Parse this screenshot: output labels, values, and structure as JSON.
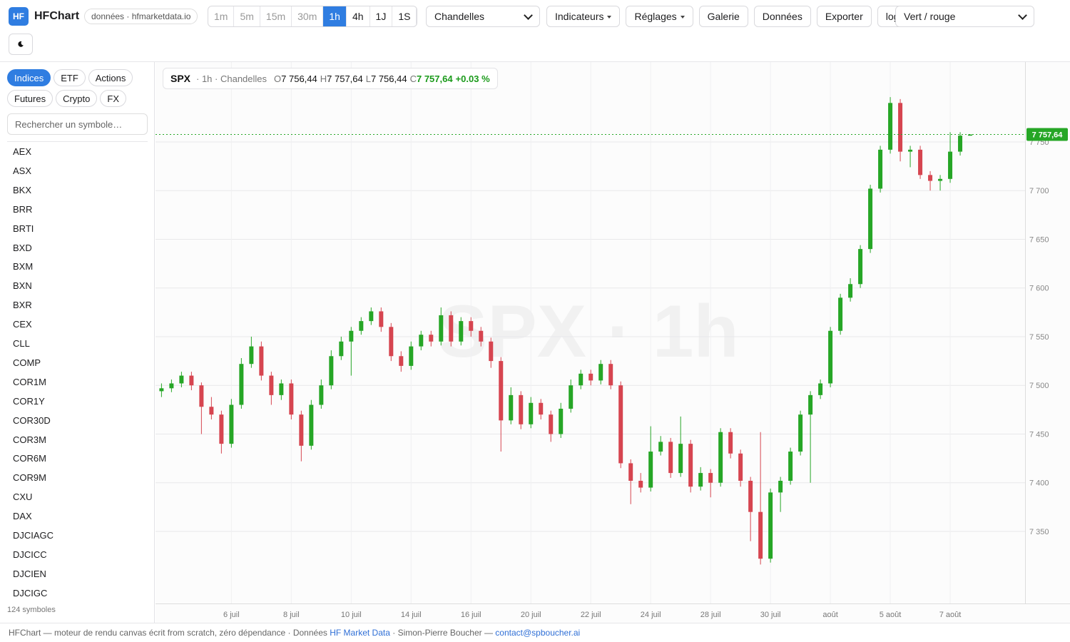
{
  "header": {
    "logo": "HF",
    "brand": "HFChart",
    "source": "données · hfmarketdata.io",
    "timeframes": [
      "1m",
      "5m",
      "15m",
      "30m",
      "1h",
      "4h",
      "1J",
      "1S"
    ],
    "active_timeframe": "1h",
    "chart_type": "Chandelles",
    "buttons": [
      "Indicateurs",
      "Réglages",
      "Galerie",
      "Données",
      "Exporter",
      "log"
    ],
    "dropdown_buttons": [
      "Indicateurs",
      "Réglages"
    ],
    "palette": "Vert / rouge"
  },
  "sidebar": {
    "tabs": [
      "Indices",
      "ETF",
      "Actions",
      "Futures",
      "Crypto",
      "FX"
    ],
    "active_tab": "Indices",
    "search_placeholder": "Rechercher un symbole…",
    "symbols": [
      "AEX",
      "ASX",
      "BKX",
      "BRR",
      "BRTI",
      "BXD",
      "BXM",
      "BXN",
      "BXR",
      "CEX",
      "CLL",
      "COMP",
      "COR1M",
      "COR1Y",
      "COR30D",
      "COR3M",
      "COR6M",
      "COR9M",
      "CXU",
      "DAX",
      "DJCIAGC",
      "DJCICC",
      "DJCIEN",
      "DJCIGC"
    ],
    "count": "124 symboles"
  },
  "chart_data": {
    "type": "candlestick",
    "symbol": "SPX",
    "subtitle": "· 1h · Chandelles",
    "watermark": "SPX · 1h",
    "legend": {
      "o_key": "O",
      "o": "7 756,44",
      "h_key": "H",
      "h": "7 757,64",
      "l_key": "L",
      "l": "7 756,44",
      "c_key": "C",
      "c": "7 757,64",
      "change": "+0.03 %"
    },
    "up_color": "#26a626",
    "down_color": "#d64550",
    "grid": true,
    "last_price": 7757.64,
    "last_price_label": "7 757,64",
    "xlim": [
      -0.6,
      86.5
    ],
    "ylim": [
      7276,
      7832
    ],
    "xticks": [
      {
        "value": 7,
        "label": "6 juil"
      },
      {
        "value": 13,
        "label": "8 juil"
      },
      {
        "value": 19,
        "label": "10 juil"
      },
      {
        "value": 25,
        "label": "14 juil"
      },
      {
        "value": 31,
        "label": "16 juil"
      },
      {
        "value": 37,
        "label": "20 juil"
      },
      {
        "value": 43,
        "label": "22 juil"
      },
      {
        "value": 49,
        "label": "24 juil"
      },
      {
        "value": 55,
        "label": "28 juil"
      },
      {
        "value": 61,
        "label": "30 juil"
      },
      {
        "value": 67,
        "label": "août"
      },
      {
        "value": 73,
        "label": "5 août"
      },
      {
        "value": 79,
        "label": "7 août"
      }
    ],
    "yticks": [
      {
        "value": 7350,
        "label": "7 350"
      },
      {
        "value": 7400,
        "label": "7 400"
      },
      {
        "value": 7450,
        "label": "7 450"
      },
      {
        "value": 7500,
        "label": "7 500"
      },
      {
        "value": 7550,
        "label": "7 550"
      },
      {
        "value": 7600,
        "label": "7 600"
      },
      {
        "value": 7650,
        "label": "7 650"
      },
      {
        "value": 7700,
        "label": "7 700"
      },
      {
        "value": 7750,
        "label": "7 750"
      }
    ],
    "candles": [
      [
        7494,
        7502,
        7488,
        7497
      ],
      [
        7497,
        7506,
        7493,
        7502
      ],
      [
        7502,
        7514,
        7498,
        7510
      ],
      [
        7510,
        7514,
        7495,
        7500
      ],
      [
        7500,
        7503,
        7450,
        7478
      ],
      [
        7478,
        7488,
        7465,
        7470
      ],
      [
        7470,
        7474,
        7430,
        7440
      ],
      [
        7440,
        7486,
        7436,
        7480
      ],
      [
        7480,
        7528,
        7476,
        7522
      ],
      [
        7522,
        7550,
        7518,
        7540
      ],
      [
        7540,
        7545,
        7505,
        7510
      ],
      [
        7510,
        7514,
        7480,
        7490
      ],
      [
        7490,
        7506,
        7485,
        7502
      ],
      [
        7502,
        7506,
        7465,
        7470
      ],
      [
        7470,
        7474,
        7422,
        7438
      ],
      [
        7438,
        7485,
        7434,
        7480
      ],
      [
        7480,
        7506,
        7476,
        7500
      ],
      [
        7500,
        7536,
        7496,
        7530
      ],
      [
        7530,
        7550,
        7526,
        7545
      ],
      [
        7545,
        7560,
        7510,
        7556
      ],
      [
        7556,
        7570,
        7552,
        7566
      ],
      [
        7566,
        7580,
        7562,
        7576
      ],
      [
        7576,
        7580,
        7555,
        7560
      ],
      [
        7560,
        7564,
        7525,
        7530
      ],
      [
        7530,
        7535,
        7514,
        7520
      ],
      [
        7520,
        7545,
        7516,
        7540
      ],
      [
        7540,
        7556,
        7536,
        7552
      ],
      [
        7552,
        7556,
        7540,
        7545
      ],
      [
        7545,
        7580,
        7541,
        7572
      ],
      [
        7572,
        7576,
        7540,
        7545
      ],
      [
        7545,
        7570,
        7541,
        7566
      ],
      [
        7566,
        7570,
        7550,
        7556
      ],
      [
        7556,
        7560,
        7540,
        7545
      ],
      [
        7545,
        7549,
        7518,
        7525
      ],
      [
        7525,
        7529,
        7432,
        7464
      ],
      [
        7464,
        7498,
        7460,
        7490
      ],
      [
        7490,
        7494,
        7455,
        7460
      ],
      [
        7460,
        7488,
        7456,
        7482
      ],
      [
        7482,
        7486,
        7465,
        7470
      ],
      [
        7470,
        7474,
        7442,
        7450
      ],
      [
        7450,
        7482,
        7446,
        7476
      ],
      [
        7476,
        7506,
        7472,
        7500
      ],
      [
        7500,
        7516,
        7496,
        7512
      ],
      [
        7512,
        7516,
        7500,
        7505
      ],
      [
        7505,
        7526,
        7501,
        7522
      ],
      [
        7522,
        7526,
        7496,
        7500
      ],
      [
        7500,
        7504,
        7415,
        7420
      ],
      [
        7420,
        7424,
        7378,
        7402
      ],
      [
        7402,
        7410,
        7390,
        7395
      ],
      [
        7395,
        7458,
        7391,
        7432
      ],
      [
        7432,
        7448,
        7428,
        7442
      ],
      [
        7442,
        7446,
        7405,
        7410
      ],
      [
        7410,
        7468,
        7406,
        7440
      ],
      [
        7440,
        7444,
        7390,
        7396
      ],
      [
        7396,
        7416,
        7392,
        7410
      ],
      [
        7410,
        7414,
        7385,
        7400
      ],
      [
        7400,
        7456,
        7396,
        7452
      ],
      [
        7452,
        7456,
        7425,
        7430
      ],
      [
        7430,
        7434,
        7396,
        7402
      ],
      [
        7402,
        7406,
        7340,
        7370
      ],
      [
        7370,
        7452,
        7316,
        7322
      ],
      [
        7322,
        7394,
        7318,
        7390
      ],
      [
        7390,
        7406,
        7370,
        7402
      ],
      [
        7402,
        7436,
        7398,
        7432
      ],
      [
        7432,
        7474,
        7428,
        7470
      ],
      [
        7470,
        7494,
        7400,
        7490
      ],
      [
        7490,
        7506,
        7486,
        7502
      ],
      [
        7502,
        7560,
        7498,
        7556
      ],
      [
        7556,
        7594,
        7552,
        7590
      ],
      [
        7590,
        7610,
        7586,
        7604
      ],
      [
        7604,
        7644,
        7600,
        7640
      ],
      [
        7640,
        7706,
        7636,
        7702
      ],
      [
        7702,
        7746,
        7698,
        7742
      ],
      [
        7742,
        7796,
        7738,
        7790
      ],
      [
        7790,
        7794,
        7730,
        7740
      ],
      [
        7740,
        7746,
        7724,
        7742
      ],
      [
        7742,
        7746,
        7712,
        7716
      ],
      [
        7716,
        7720,
        7700,
        7710
      ],
      [
        7710,
        7716,
        7700,
        7712
      ],
      [
        7712,
        7760,
        7708,
        7740
      ],
      [
        7740,
        7760,
        7736,
        7756.44
      ],
      [
        7756.44,
        7757.64,
        7756.44,
        7757.64
      ]
    ]
  },
  "footer": {
    "text1": "HFChart — moteur de rendu canvas écrit from scratch, zéro dépendance · Données ",
    "link1": "HF Market Data",
    "text2": " · Simon-Pierre Boucher — ",
    "link2": "contact@spboucher.ai"
  }
}
